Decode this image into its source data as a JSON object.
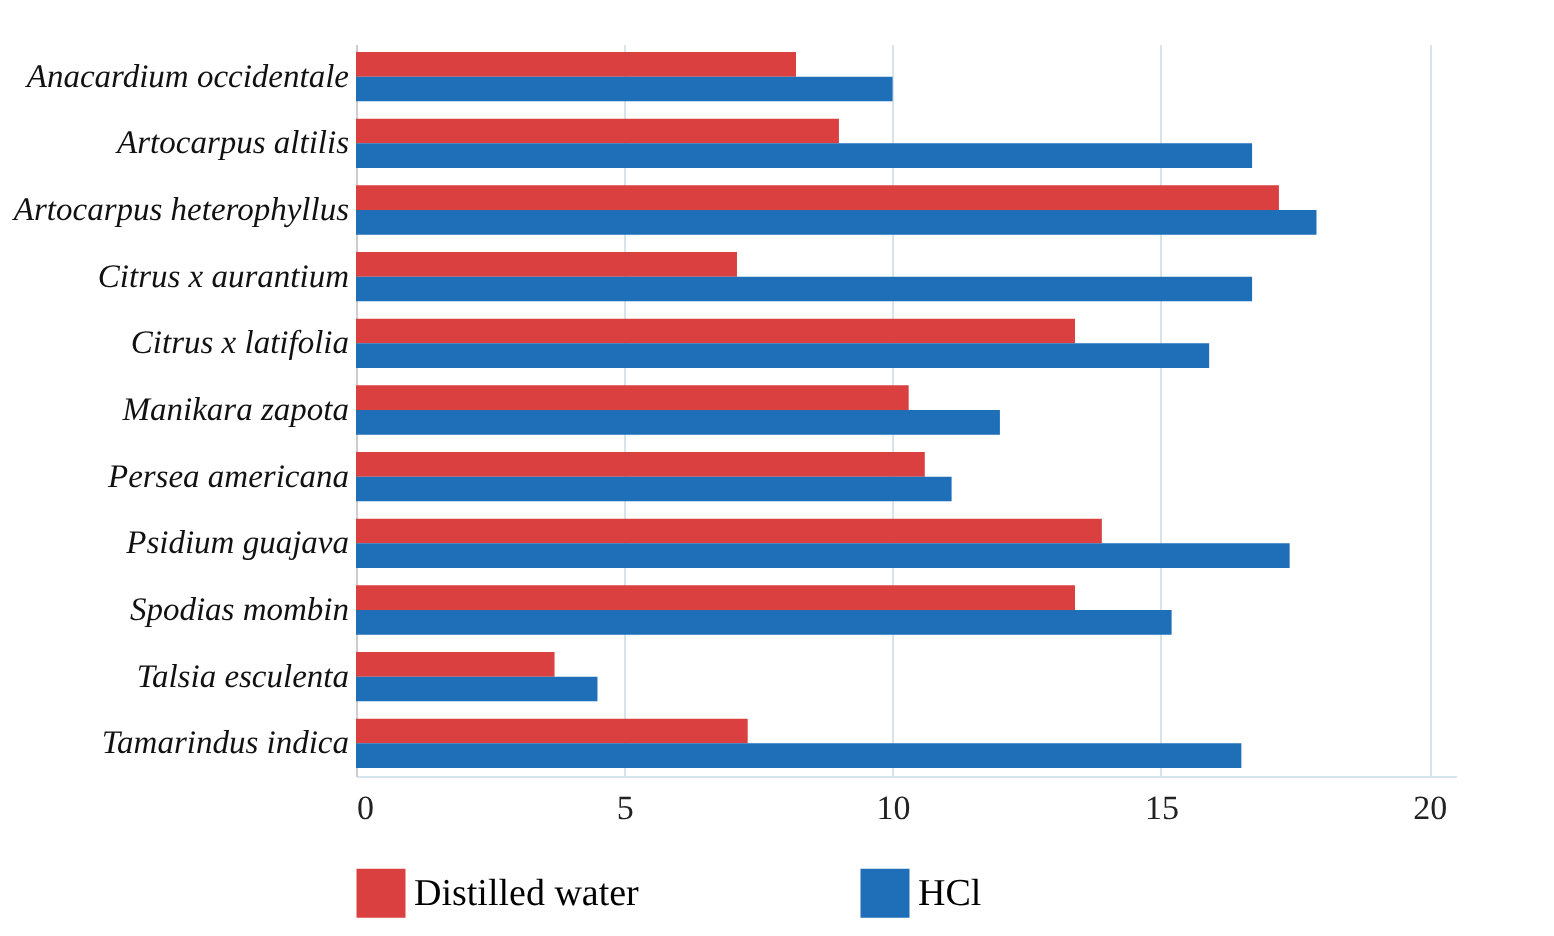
{
  "chart_data": {
    "type": "bar",
    "orientation": "horizontal",
    "categories": [
      "Anacardium occidentale",
      "Artocarpus altilis",
      "Artocarpus heterophyllus",
      "Citrus x aurantium",
      "Citrus x latifolia",
      "Manikara zapota",
      "Persea americana",
      "Psidium guajava",
      "Spodias mombin",
      "Talsia esculenta",
      "Tamarindus indica"
    ],
    "series": [
      {
        "name": "Distilled water",
        "color": "#d9403f",
        "values": [
          8.2,
          9.0,
          17.2,
          7.1,
          13.4,
          10.3,
          10.6,
          13.9,
          13.4,
          3.7,
          7.3
        ]
      },
      {
        "name": "HCl",
        "color": "#1f6fb8",
        "values": [
          10.0,
          16.7,
          17.9,
          16.7,
          15.9,
          12.0,
          11.1,
          17.4,
          15.2,
          4.5,
          16.5
        ]
      }
    ],
    "xlim": [
      0,
      20.5
    ],
    "xticks": [
      0,
      5,
      10,
      15,
      20
    ],
    "grid": "x",
    "legend": "bottom"
  }
}
